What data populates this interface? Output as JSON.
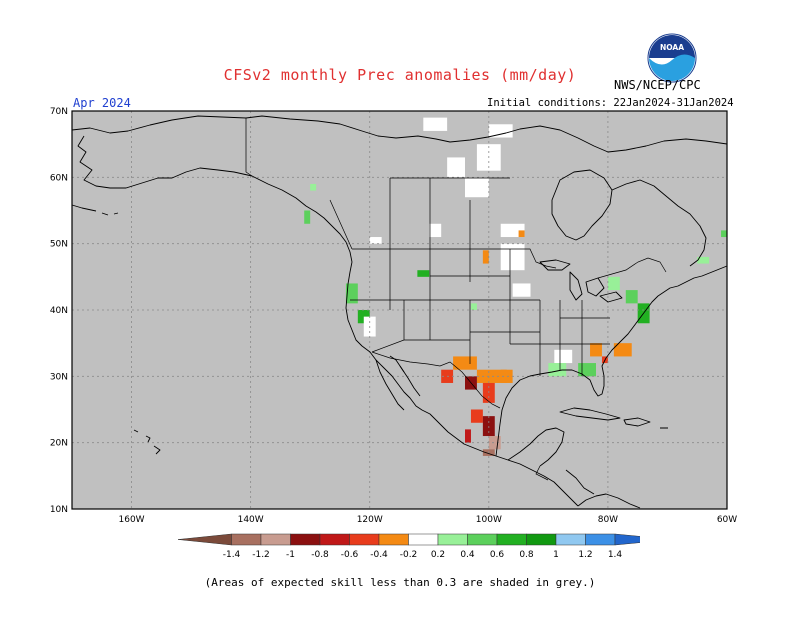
{
  "header": {
    "title": "CFSv2 monthly Prec anomalies (mm/day)",
    "agency": "NWS/NCEP/CPC",
    "logo_text": "NOAA",
    "month": "Apr 2024",
    "initial_conditions": "Initial conditions: 22Jan2024-31Jan2024"
  },
  "map": {
    "projection": "lat-lon",
    "lon_range": [
      -170,
      -60
    ],
    "lat_range": [
      10,
      70
    ],
    "lat_labels": [
      "70N",
      "60N",
      "50N",
      "40N",
      "30N",
      "20N",
      "10N"
    ],
    "lon_labels": [
      "160W",
      "140W",
      "120W",
      "100W",
      "80W",
      "60W"
    ],
    "grey_shading": "#c0c0c0",
    "coastline_color": "#000000"
  },
  "anomaly_cells": [
    {
      "lon": -111,
      "lat": 67,
      "w": 4,
      "h": 2,
      "v": 0
    },
    {
      "lon": -100,
      "lat": 66,
      "w": 4,
      "h": 2,
      "v": 0
    },
    {
      "lon": -107,
      "lat": 60,
      "w": 3,
      "h": 3,
      "v": 0
    },
    {
      "lon": -102,
      "lat": 61,
      "w": 4,
      "h": 4,
      "v": 0
    },
    {
      "lon": -104,
      "lat": 57,
      "w": 4,
      "h": 3,
      "v": 0
    },
    {
      "lon": -130,
      "lat": 58,
      "w": 1,
      "h": 1,
      "v": 0.3
    },
    {
      "lon": -131,
      "lat": 53,
      "w": 1,
      "h": 2,
      "v": 0.5
    },
    {
      "lon": -120,
      "lat": 50,
      "w": 2,
      "h": 1,
      "v": 0
    },
    {
      "lon": -110,
      "lat": 51,
      "w": 2,
      "h": 2,
      "v": 0
    },
    {
      "lon": -98,
      "lat": 51,
      "w": 4,
      "h": 2,
      "v": 0
    },
    {
      "lon": -95,
      "lat": 51,
      "w": 1,
      "h": 1,
      "v": -0.3
    },
    {
      "lon": -98,
      "lat": 46,
      "w": 4,
      "h": 4,
      "v": 0
    },
    {
      "lon": -101,
      "lat": 47,
      "w": 1,
      "h": 2,
      "v": -0.3
    },
    {
      "lon": -96,
      "lat": 42,
      "w": 3,
      "h": 2,
      "v": 0
    },
    {
      "lon": -103,
      "lat": 40,
      "w": 1,
      "h": 1,
      "v": 0.3
    },
    {
      "lon": -112,
      "lat": 45,
      "w": 2,
      "h": 1,
      "v": 0.6
    },
    {
      "lon": -124,
      "lat": 41,
      "w": 2,
      "h": 3,
      "v": 0.5
    },
    {
      "lon": -122,
      "lat": 38,
      "w": 2,
      "h": 2,
      "v": 0.6
    },
    {
      "lon": -121,
      "lat": 36,
      "w": 2,
      "h": 3,
      "v": 0
    },
    {
      "lon": -80,
      "lat": 43,
      "w": 2,
      "h": 2,
      "v": 0.3
    },
    {
      "lon": -77,
      "lat": 41,
      "w": 2,
      "h": 2,
      "v": 0.5
    },
    {
      "lon": -75,
      "lat": 38,
      "w": 2,
      "h": 3,
      "v": 0.6
    },
    {
      "lon": -65,
      "lat": 47,
      "w": 2,
      "h": 1,
      "v": 0.3
    },
    {
      "lon": -61,
      "lat": 51,
      "w": 1,
      "h": 1,
      "v": 0.5
    },
    {
      "lon": -79,
      "lat": 33,
      "w": 3,
      "h": 2,
      "v": -0.3
    },
    {
      "lon": -83,
      "lat": 33,
      "w": 2,
      "h": 2,
      "v": -0.3
    },
    {
      "lon": -81,
      "lat": 32,
      "w": 1,
      "h": 1,
      "v": -0.5
    },
    {
      "lon": -89,
      "lat": 32,
      "w": 3,
      "h": 2,
      "v": 0
    },
    {
      "lon": -90,
      "lat": 30,
      "w": 3,
      "h": 2,
      "v": 0.3
    },
    {
      "lon": -85,
      "lat": 30,
      "w": 3,
      "h": 2,
      "v": 0.4
    },
    {
      "lon": -106,
      "lat": 31,
      "w": 4,
      "h": 2,
      "v": -0.3
    },
    {
      "lon": -102,
      "lat": 29,
      "w": 5,
      "h": 2,
      "v": -0.3
    },
    {
      "lon": -98,
      "lat": 29,
      "w": 2,
      "h": 2,
      "v": -0.4
    },
    {
      "lon": -104,
      "lat": 28,
      "w": 2,
      "h": 2,
      "v": -0.9
    },
    {
      "lon": -108,
      "lat": 29,
      "w": 2,
      "h": 2,
      "v": -0.6
    },
    {
      "lon": -101,
      "lat": 26,
      "w": 2,
      "h": 3,
      "v": -0.5
    },
    {
      "lon": -103,
      "lat": 23,
      "w": 2,
      "h": 2,
      "v": -0.5
    },
    {
      "lon": -101,
      "lat": 21,
      "w": 2,
      "h": 3,
      "v": -0.9
    },
    {
      "lon": -104,
      "lat": 20,
      "w": 1,
      "h": 2,
      "v": -0.8
    },
    {
      "lon": -100,
      "lat": 19,
      "w": 2,
      "h": 2,
      "v": -1.1
    },
    {
      "lon": -101,
      "lat": 18,
      "w": 2,
      "h": 1,
      "v": -1.3
    }
  ],
  "legend": {
    "levels": [
      "-1.4",
      "-1.2",
      "-1",
      "-0.8",
      "-0.6",
      "-0.4",
      "-0.2",
      "0.2",
      "0.4",
      "0.6",
      "0.8",
      "1",
      "1.2",
      "1.4"
    ],
    "colors": [
      "#7b4a3a",
      "#a87060",
      "#c89c90",
      "#8b1010",
      "#c01818",
      "#e83c1c",
      "#f48a14",
      "#ffffff",
      "#98f098",
      "#5cd05c",
      "#22b022",
      "#119911",
      "#90c8f0",
      "#3c90e6",
      "#2266cc"
    ]
  },
  "footnote": "(Areas of expected skill less than 0.3 are shaded in grey.)"
}
